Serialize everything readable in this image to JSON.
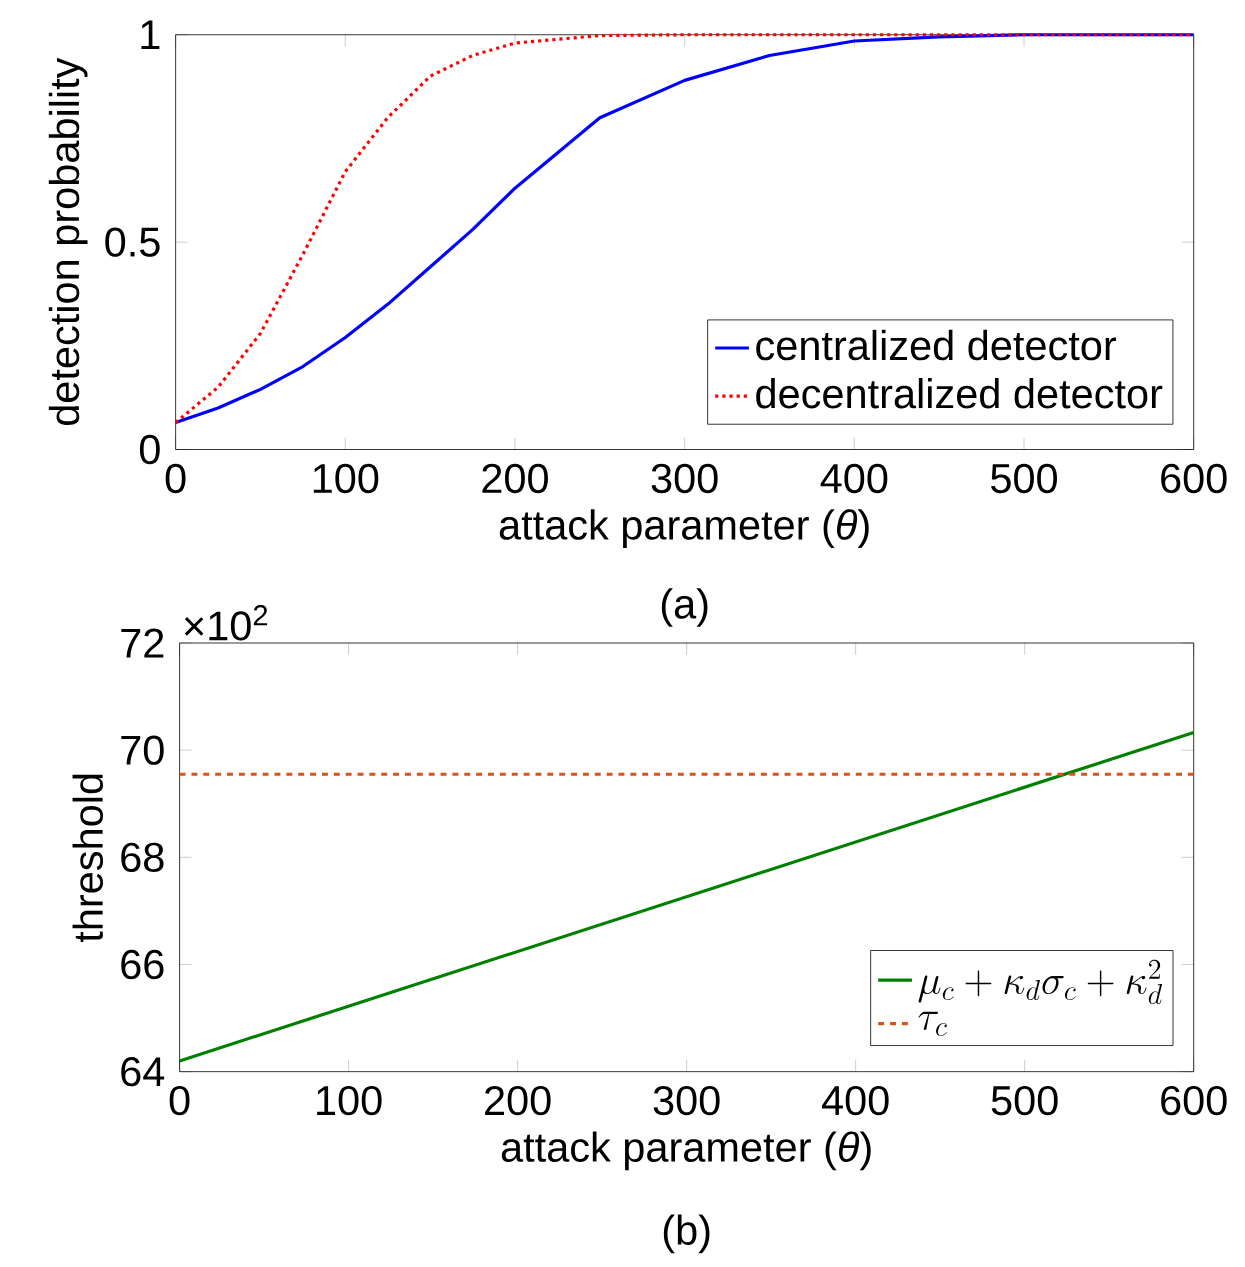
{
  "chart_data": [
    {
      "type": "line",
      "xlabel": "attack parameter (*θ*)",
      "ylabel": "detection probability",
      "xlim": [
        0,
        600
      ],
      "ylim": [
        0,
        1
      ],
      "xticks": [
        0,
        100,
        200,
        300,
        400,
        500,
        600
      ],
      "yticks": [
        0,
        0.5,
        1
      ],
      "legend": "bottom right",
      "marker": "none",
      "grid": false,
      "series": [
        {
          "name": "centralized detector",
          "color": "#0000ff",
          "line_style": "solid",
          "x": [
            0,
            25,
            50,
            75,
            100,
            125,
            150,
            175,
            200,
            250,
            300,
            350,
            400,
            450,
            500,
            550,
            600
          ],
          "values": [
            0.065,
            0.1,
            0.145,
            0.2,
            0.27,
            0.35,
            0.44,
            0.53,
            0.63,
            0.8,
            0.89,
            0.95,
            0.985,
            0.995,
            1,
            1,
            1
          ]
        },
        {
          "name": "decentralized detector",
          "color": "#ff0000",
          "line_style": "dotted",
          "x": [
            0,
            25,
            50,
            75,
            100,
            125,
            150,
            175,
            200,
            250,
            300,
            350,
            400,
            450,
            500,
            550,
            600
          ],
          "values": [
            0.065,
            0.15,
            0.28,
            0.47,
            0.67,
            0.8,
            0.9,
            0.95,
            0.98,
            0.998,
            1,
            1,
            1,
            1,
            1,
            1,
            1
          ]
        }
      ],
      "annotations": [
        "(a)"
      ]
    },
    {
      "type": "line",
      "xlabel": "attack parameter (*θ*)",
      "ylabel": "threshold",
      "xlim": [
        0,
        600
      ],
      "ylim": [
        64,
        72
      ],
      "xticks": [
        0,
        100,
        200,
        300,
        400,
        500,
        600
      ],
      "yticks": [
        64,
        66,
        68,
        70,
        72
      ],
      "legend": "bottom right",
      "marker": "none",
      "grid": false,
      "series": [
        {
          "name": "\\mu_c + \\kappa_d\\sigma_c + \\kappa_d^2",
          "color": "#008000",
          "line_style": "solid",
          "x": [
            0,
            600
          ],
          "values": [
            64.2,
            70.33
          ]
        }
      ],
      "ref_lines": [
        {
          "axis": "y",
          "value": 69.55,
          "label": "\\tau_c",
          "color": "#d95319",
          "line_style": "dashed"
        }
      ],
      "annotations": [
        "×10$^{2}$",
        "(b)"
      ]
    }
  ]
}
